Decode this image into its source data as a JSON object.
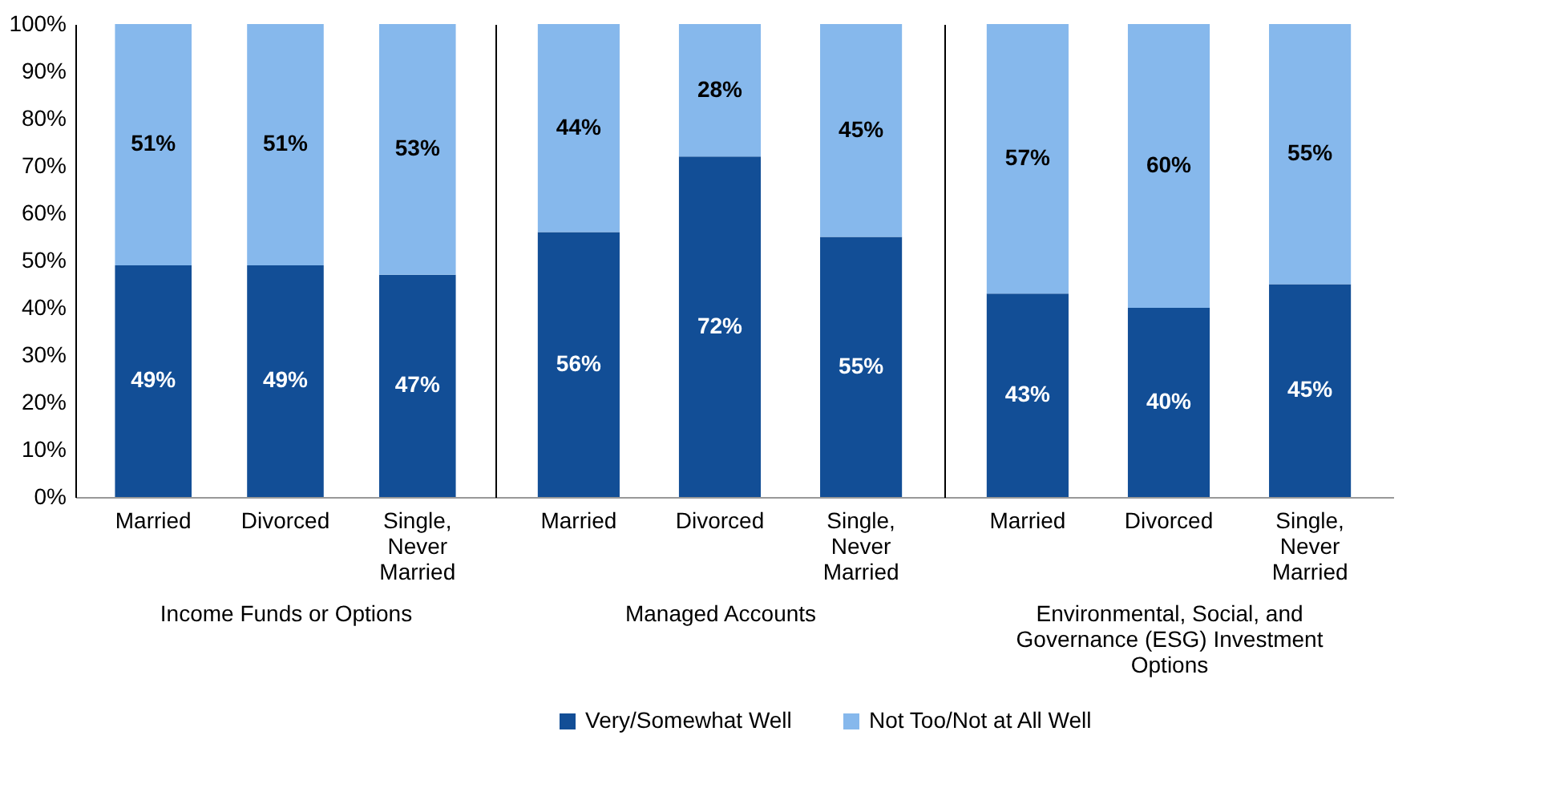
{
  "chart_data": [
    {
      "type": "bar",
      "stacked": true,
      "xlabel": "Income Funds or Options",
      "categories": [
        "Married",
        "Divorced",
        "Single, Never Married"
      ],
      "series": [
        {
          "name": "Very/Somewhat Well",
          "color": "#124e96",
          "values": [
            49,
            49,
            47
          ],
          "value_labels": [
            "49%",
            "49%",
            "47%"
          ]
        },
        {
          "name": "Not Too/Not at All Well",
          "color": "#86b8ec",
          "values": [
            51,
            51,
            53
          ],
          "value_labels": [
            "51%",
            "51%",
            "53%"
          ]
        }
      ],
      "ylim": [
        0,
        100
      ],
      "yticks": [
        {
          "value": 0,
          "label": "0%"
        },
        {
          "value": 10,
          "label": "10%"
        },
        {
          "value": 20,
          "label": "20%"
        },
        {
          "value": 30,
          "label": "30%"
        },
        {
          "value": 40,
          "label": "40%"
        },
        {
          "value": 50,
          "label": "50%"
        },
        {
          "value": 60,
          "label": "60%"
        },
        {
          "value": 70,
          "label": "70%"
        },
        {
          "value": 80,
          "label": "80%"
        },
        {
          "value": 90,
          "label": "90%"
        },
        {
          "value": 100,
          "label": "100%"
        }
      ],
      "grid": false,
      "legend": "bottom"
    },
    {
      "type": "bar",
      "stacked": true,
      "xlabel": "Managed Accounts",
      "categories": [
        "Married",
        "Divorced",
        "Single, Never Married"
      ],
      "series": [
        {
          "name": "Very/Somewhat Well",
          "color": "#124e96",
          "values": [
            56,
            72,
            55
          ],
          "value_labels": [
            "56%",
            "72%",
            "55%"
          ]
        },
        {
          "name": "Not Too/Not at All Well",
          "color": "#86b8ec",
          "values": [
            44,
            28,
            45
          ],
          "value_labels": [
            "44%",
            "28%",
            "45%"
          ]
        }
      ],
      "ylim": [
        0,
        100
      ],
      "tick_labels": "x",
      "grid": false,
      "legend": "bottom"
    },
    {
      "type": "bar",
      "stacked": true,
      "xlabel": "Environmental, Social, and Governance (ESG) Investment Options",
      "categories": [
        "Married",
        "Divorced",
        "Single, Never Married"
      ],
      "series": [
        {
          "name": "Very/Somewhat Well",
          "color": "#124e96",
          "values": [
            43,
            40,
            45
          ],
          "value_labels": [
            "43%",
            "40%",
            "45%"
          ]
        },
        {
          "name": "Not Too/Not at All Well",
          "color": "#86b8ec",
          "values": [
            57,
            60,
            55
          ],
          "value_labels": [
            "57%",
            "60%",
            "55%"
          ]
        }
      ],
      "ylim": [
        0,
        100
      ],
      "tick_labels": "x",
      "grid": false,
      "legend": "bottom"
    }
  ]
}
